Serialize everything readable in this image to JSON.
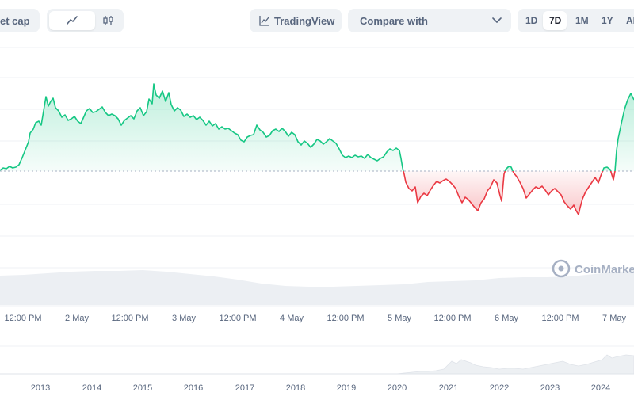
{
  "toolbar": {
    "chart_type_label": "et cap",
    "tradingview_label": "TradingView",
    "compare_placeholder": "Compare with",
    "timeframes": [
      "1D",
      "7D",
      "1M",
      "1Y",
      "Al"
    ],
    "active_timeframe": "7D",
    "icons": {
      "line": "line-chart-icon",
      "candle": "candlestick-icon",
      "tradingview": "tradingview-icon",
      "chevron": "chevron-down-icon"
    }
  },
  "watermark": "CoinMarke",
  "chart_data": {
    "type": "line",
    "baseline_note": "",
    "colors": {
      "up": "#16c784",
      "down": "#ea3943"
    },
    "x_labels": [
      "12:00 PM",
      "2 May",
      "12:00 PM",
      "3 May",
      "12:00 PM",
      "4 May",
      "12:00 PM",
      "5 May",
      "12:00 PM",
      "6 May",
      "12:00 PM",
      "7 May"
    ],
    "navigator_years": [
      "2013",
      "2014",
      "2015",
      "2016",
      "2017",
      "2018",
      "2019",
      "2020",
      "2021",
      "2022",
      "2023",
      "2024"
    ]
  }
}
